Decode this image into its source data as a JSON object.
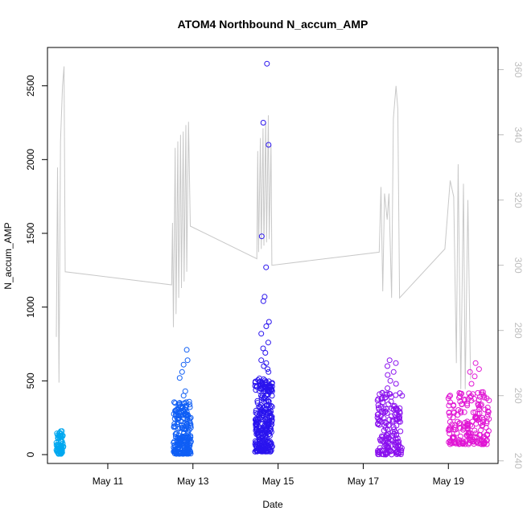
{
  "chart_data": {
    "type": "scatter",
    "title": "ATOM4 Northbound N_accum_AMP",
    "xlabel": "Date",
    "ylabel": "N_accum_AMP",
    "y2label": "",
    "x_range": [
      "2025-05-09T14:00",
      "2025-05-20T04:00"
    ],
    "ylim": [
      -60,
      2760
    ],
    "y2lim": [
      239.2,
      366.8
    ],
    "x_ticks": [
      {
        "label": "May 11",
        "date": "2025-05-11"
      },
      {
        "label": "May 13",
        "date": "2025-05-13"
      },
      {
        "label": "May 15",
        "date": "2025-05-15"
      },
      {
        "label": "May 17",
        "date": "2025-05-17"
      },
      {
        "label": "May 19",
        "date": "2025-05-19"
      }
    ],
    "y_ticks": [
      0,
      500,
      1000,
      1500,
      2000,
      2500
    ],
    "y2_ticks": [
      240,
      260,
      280,
      300,
      320,
      340,
      360
    ],
    "secondary_line_color": "#c8c8c8",
    "point_colors": [
      "#00aaff",
      "#0066ff",
      "#2a1aff",
      "#8800ff",
      "#ff00cc"
    ],
    "scatter_clusters": [
      {
        "start": "2025-05-09T19:00",
        "end": "2025-05-09T23:00",
        "color": "#00a8f0",
        "n": 70,
        "min": 5,
        "max": 160,
        "outliers": []
      },
      {
        "start": "2025-05-12T13:00",
        "end": "2025-05-12T23:00",
        "color": "#0f5ef5",
        "n": 220,
        "min": 5,
        "max": 360,
        "outliers": [
          400,
          430,
          520,
          560,
          610,
          640,
          710
        ]
      },
      {
        "start": "2025-05-14T11:00",
        "end": "2025-05-14T21:00",
        "color": "#2a14ee",
        "n": 300,
        "min": 20,
        "max": 520,
        "outliers": [
          560,
          580,
          600,
          620,
          640,
          690,
          720,
          760,
          820,
          870,
          900,
          1040,
          1070,
          1270,
          1480,
          2100,
          2250,
          2650
        ]
      },
      {
        "start": "2025-05-17T08:00",
        "end": "2025-05-17T22:00",
        "color": "#8a10ee",
        "n": 170,
        "min": 0,
        "max": 420,
        "outliers": [
          450,
          480,
          500,
          540,
          560,
          600,
          620,
          640
        ]
      },
      {
        "start": "2025-05-19T00:00",
        "end": "2025-05-19T23:00",
        "color": "#e016d4",
        "n": 200,
        "min": 70,
        "max": 430,
        "outliers": [
          480,
          530,
          560,
          580,
          620
        ]
      }
    ],
    "secondary_series": [
      [
        "2025-05-09T19:00",
        278
      ],
      [
        "2025-05-09T19:40",
        330
      ],
      [
        "2025-05-09T20:30",
        264
      ],
      [
        "2025-05-09T21:20",
        338
      ],
      [
        "2025-05-09T22:30",
        355
      ],
      [
        "2025-05-09T23:20",
        361
      ],
      [
        "2025-05-10T00:00",
        298
      ],
      [
        "2025-05-12T12:00",
        294
      ],
      [
        "2025-05-12T12:30",
        313
      ],
      [
        "2025-05-12T13:00",
        281
      ],
      [
        "2025-05-12T14:00",
        336
      ],
      [
        "2025-05-12T14:30",
        285
      ],
      [
        "2025-05-12T15:30",
        338
      ],
      [
        "2025-05-12T16:00",
        290
      ],
      [
        "2025-05-12T17:00",
        340
      ],
      [
        "2025-05-12T17:30",
        293
      ],
      [
        "2025-05-12T18:30",
        341
      ],
      [
        "2025-05-12T19:00",
        295
      ],
      [
        "2025-05-12T20:00",
        343
      ],
      [
        "2025-05-12T20:30",
        298
      ],
      [
        "2025-05-12T21:30",
        344
      ],
      [
        "2025-05-12T22:30",
        312
      ],
      [
        "2025-05-14T12:00",
        302
      ],
      [
        "2025-05-14T12:30",
        335
      ],
      [
        "2025-05-14T13:00",
        304
      ],
      [
        "2025-05-14T14:00",
        339
      ],
      [
        "2025-05-14T14:30",
        305
      ],
      [
        "2025-05-14T15:30",
        342
      ],
      [
        "2025-05-14T16:00",
        306
      ],
      [
        "2025-05-14T17:00",
        344
      ],
      [
        "2025-05-14T17:30",
        307
      ],
      [
        "2025-05-14T18:30",
        346
      ],
      [
        "2025-05-14T19:00",
        308
      ],
      [
        "2025-05-14T20:00",
        337
      ],
      [
        "2025-05-14T20:30",
        300
      ],
      [
        "2025-05-17T09:00",
        304
      ],
      [
        "2025-05-17T10:00",
        324
      ],
      [
        "2025-05-17T11:00",
        292
      ],
      [
        "2025-05-17T12:00",
        322
      ],
      [
        "2025-05-17T13:30",
        314
      ],
      [
        "2025-05-17T14:30",
        322
      ],
      [
        "2025-05-17T16:00",
        290
      ],
      [
        "2025-05-17T17:00",
        345
      ],
      [
        "2025-05-17T18:30",
        355
      ],
      [
        "2025-05-17T19:30",
        348
      ],
      [
        "2025-05-17T20:30",
        290
      ],
      [
        "2025-05-18T22:00",
        305
      ],
      [
        "2025-05-19T01:00",
        326
      ],
      [
        "2025-05-19T03:00",
        321
      ],
      [
        "2025-05-19T04:30",
        270
      ],
      [
        "2025-05-19T05:30",
        331
      ],
      [
        "2025-05-19T07:00",
        262
      ],
      [
        "2025-05-19T08:30",
        325
      ],
      [
        "2025-05-19T09:30",
        262
      ],
      [
        "2025-05-19T11:00",
        320
      ],
      [
        "2025-05-19T12:30",
        265
      ]
    ],
    "grid": false,
    "legend": "none"
  }
}
